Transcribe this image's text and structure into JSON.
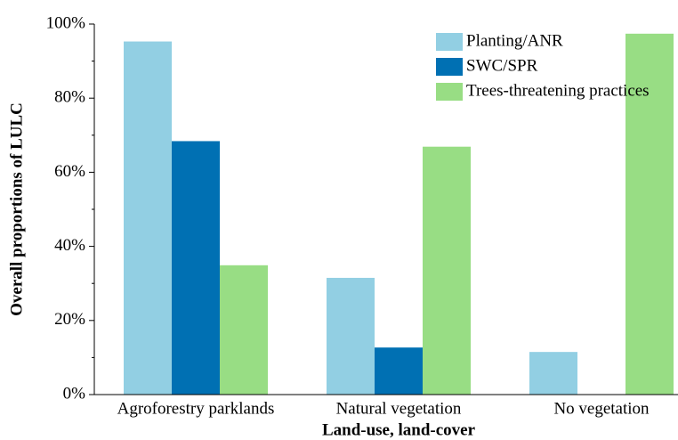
{
  "chart_data": {
    "type": "bar",
    "x_label": "Land-use, land-cover",
    "y_label": "Overall proportions of LULC",
    "categories": [
      "Agroforestry parklands",
      "Natural vegetation",
      "No vegetation"
    ],
    "series": [
      {
        "name": "Planting/ANR",
        "color": "#92cfe3",
        "values": [
          95.3,
          31.5,
          11.5
        ]
      },
      {
        "name": "SWC/SPR",
        "color": "#0070b3",
        "values": [
          68.4,
          12.7,
          0
        ]
      },
      {
        "name": "Trees-threatening practices",
        "color": "#98dd84",
        "values": [
          34.9,
          66.9,
          97.4
        ]
      }
    ],
    "ylim": [
      0,
      100
    ],
    "yticks": [
      {
        "value": 0,
        "label": "0%"
      },
      {
        "value": 20,
        "label": "20%"
      },
      {
        "value": 40,
        "label": "40%"
      },
      {
        "value": 60,
        "label": "60%"
      },
      {
        "value": 80,
        "label": "80%"
      },
      {
        "value": 100,
        "label": "100%"
      }
    ],
    "legend": "top-right"
  }
}
